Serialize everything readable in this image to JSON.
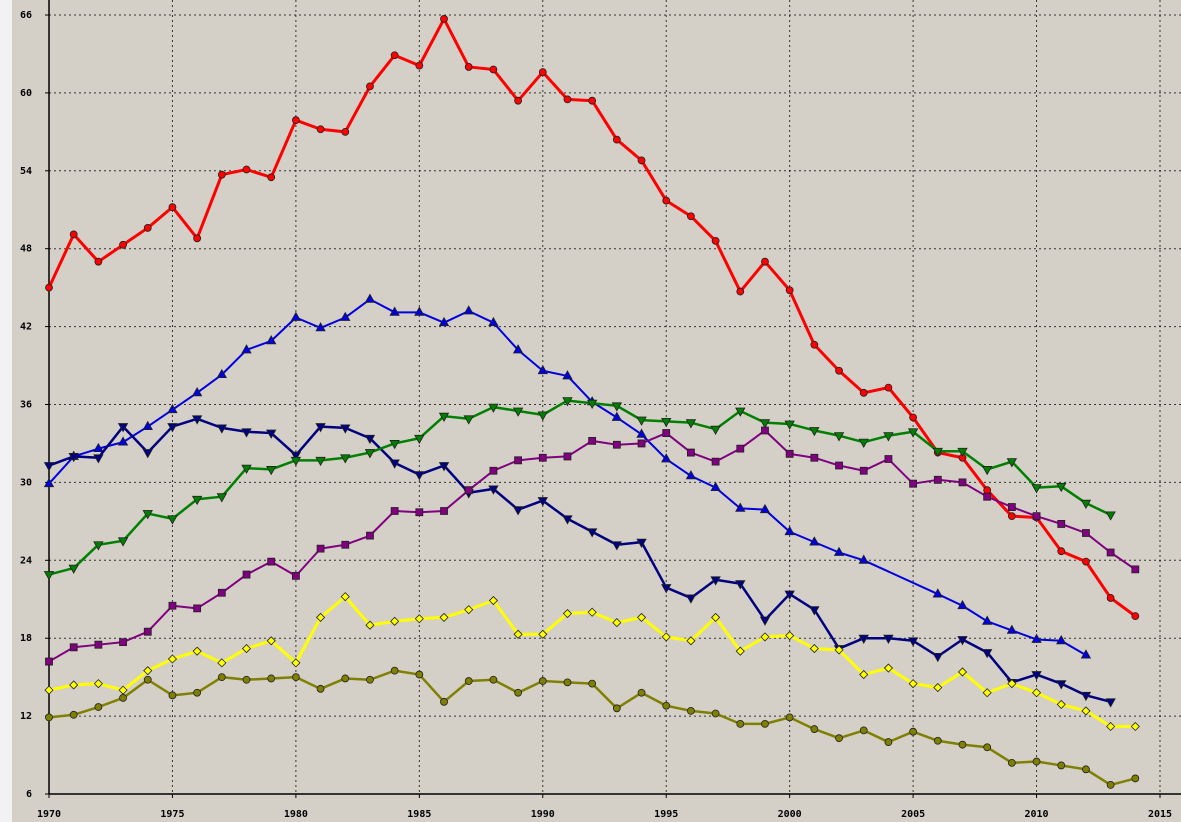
{
  "chart_data": {
    "type": "line",
    "x": [
      1970,
      1971,
      1972,
      1973,
      1974,
      1975,
      1976,
      1977,
      1978,
      1979,
      1980,
      1981,
      1982,
      1983,
      1984,
      1985,
      1986,
      1987,
      1988,
      1989,
      1990,
      1991,
      1992,
      1993,
      1994,
      1995,
      1996,
      1997,
      1998,
      1999,
      2000,
      2001,
      2002,
      2003,
      2004,
      2005,
      2006,
      2007,
      2008,
      2009,
      2010,
      2011,
      2012,
      2013,
      2014
    ],
    "xlim": [
      1970,
      2015
    ],
    "xticks": [
      1970,
      1975,
      1980,
      1985,
      1990,
      1995,
      2000,
      2005,
      2010,
      2015
    ],
    "ylim": [
      6,
      66
    ],
    "yticks": [
      6,
      12,
      18,
      24,
      30,
      36,
      42,
      48,
      54,
      60,
      66
    ],
    "grid": true,
    "series": [
      {
        "color": "#ff0000",
        "marker": "circle",
        "values": [
          45,
          49.1,
          47,
          48.3,
          49.6,
          51.2,
          48.8,
          53.7,
          54.1,
          53.5,
          57.9,
          57.2,
          57,
          60.5,
          62.9,
          62.1,
          65.7,
          62,
          61.8,
          59.4,
          61.6,
          59.5,
          59.4,
          56.4,
          54.8,
          51.7,
          50.5,
          48.6,
          44.7,
          47,
          44.8,
          40.6,
          38.6,
          36.9,
          37.3,
          35,
          32.3,
          31.9,
          29.4,
          27.4,
          27.3,
          24.7,
          23.9,
          21.1,
          19.7
        ]
      },
      {
        "color": "#0000e0",
        "marker": "triangle-up",
        "x": [
          1970,
          1971,
          1972,
          1973,
          1974,
          1975,
          1976,
          1977,
          1978,
          1979,
          1980,
          1981,
          1982,
          1983,
          1984,
          1985,
          1986,
          1987,
          1988,
          1989,
          1990,
          1991,
          1992,
          1993,
          1994,
          1995,
          1996,
          1997,
          1998,
          1999,
          2000,
          2001,
          2002,
          2003,
          2006,
          2007,
          2008,
          2009,
          2010,
          2011,
          2012
        ],
        "values": [
          29.9,
          32,
          32.6,
          33.1,
          34.3,
          35.6,
          36.9,
          38.3,
          40.2,
          40.9,
          42.7,
          41.9,
          42.7,
          44.1,
          43.1,
          43.1,
          42.3,
          43.2,
          42.3,
          40.2,
          38.6,
          38.2,
          36.2,
          35,
          33.7,
          31.8,
          30.5,
          29.6,
          28,
          27.9,
          26.2,
          25.4,
          24.6,
          24,
          21.4,
          20.5,
          19.3,
          18.6,
          17.9,
          17.8,
          16.7
        ]
      },
      {
        "color": "#000080",
        "marker": "triangle-down",
        "values": [
          31.3,
          32,
          31.9,
          34.3,
          32.3,
          34.3,
          34.9,
          34.2,
          33.9,
          33.8,
          32.1,
          34.3,
          34.2,
          33.4,
          31.5,
          30.6,
          31.3,
          29.2,
          29.5,
          27.9,
          28.6,
          27.2,
          26.2,
          25.2,
          25.4,
          21.9,
          21.1,
          22.5,
          22.2,
          19.4,
          21.4,
          20.2,
          17.2,
          18,
          18,
          17.8,
          16.6,
          17.9,
          16.9,
          14.6,
          15.2,
          14.5,
          13.6,
          13.1,
          null
        ]
      },
      {
        "color": "#008000",
        "marker": "triangle-down",
        "values": [
          22.9,
          23.4,
          25.2,
          25.5,
          27.6,
          27.2,
          28.7,
          28.9,
          31.1,
          31,
          31.7,
          31.7,
          31.9,
          32.3,
          33,
          33.4,
          35.1,
          34.9,
          35.8,
          35.5,
          35.2,
          36.3,
          36.1,
          35.9,
          34.8,
          34.7,
          34.6,
          34.1,
          35.5,
          34.6,
          34.5,
          34,
          33.6,
          33.1,
          33.6,
          33.9,
          32.4,
          32.4,
          31,
          31.6,
          29.6,
          29.7,
          28.4,
          27.5,
          null
        ]
      },
      {
        "color": "#800080",
        "marker": "square",
        "values": [
          16.2,
          17.3,
          17.5,
          17.7,
          18.5,
          20.5,
          20.3,
          21.5,
          22.9,
          23.9,
          22.8,
          24.9,
          25.2,
          25.9,
          27.8,
          27.7,
          27.8,
          29.4,
          30.9,
          31.7,
          31.9,
          32,
          33.2,
          32.9,
          33,
          33.8,
          32.3,
          31.6,
          32.6,
          34,
          32.2,
          31.9,
          31.3,
          30.9,
          31.8,
          29.9,
          30.2,
          30,
          28.9,
          28.1,
          27.4,
          26.8,
          26.1,
          24.6,
          23.3
        ]
      },
      {
        "color": "#ffff00",
        "marker": "diamond",
        "values": [
          14,
          14.4,
          14.5,
          14,
          15.5,
          16.4,
          17,
          16.1,
          17.2,
          17.8,
          16.1,
          19.6,
          21.2,
          19,
          19.3,
          19.5,
          19.6,
          20.2,
          20.9,
          18.3,
          18.3,
          19.9,
          20,
          19.2,
          19.6,
          18.1,
          17.8,
          19.6,
          17,
          18.1,
          18.2,
          17.2,
          17.1,
          15.2,
          15.7,
          14.5,
          14.2,
          15.4,
          13.8,
          14.5,
          13.8,
          12.9,
          12.4,
          11.2,
          11.2
        ]
      },
      {
        "color": "#808000",
        "marker": "circle",
        "values": [
          11.9,
          12.1,
          12.7,
          13.4,
          14.8,
          13.6,
          13.8,
          15,
          14.8,
          14.9,
          15,
          14.1,
          14.9,
          14.8,
          15.5,
          15.2,
          13.1,
          14.7,
          14.8,
          13.8,
          14.7,
          14.6,
          14.5,
          12.6,
          13.8,
          12.8,
          12.4,
          12.2,
          11.4,
          11.4,
          11.9,
          11,
          10.3,
          10.9,
          10,
          10.8,
          10.1,
          9.8,
          9.6,
          8.4,
          8.5,
          8.2,
          7.9,
          6.7,
          7.2
        ]
      }
    ]
  }
}
